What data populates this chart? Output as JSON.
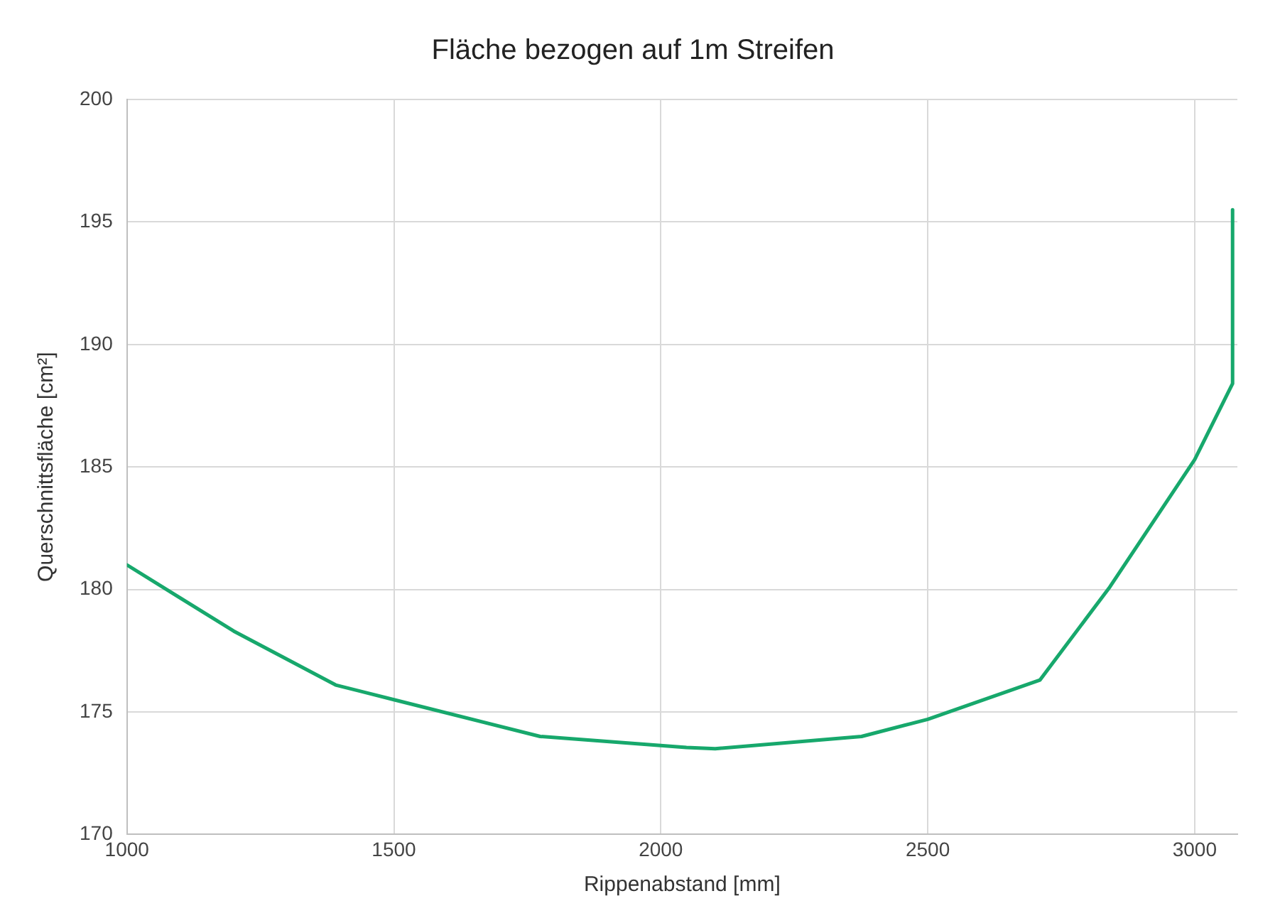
{
  "chart_data": {
    "type": "line",
    "title": "Fläche bezogen auf 1m Streifen",
    "xlabel": "Rippenabstand [mm]",
    "ylabel": "Querschnittsfläche [cm²]",
    "x": [
      1000,
      1200,
      1391,
      1500,
      1774,
      2048,
      2102,
      2376,
      2500,
      2710,
      2841,
      3000,
      3071,
      3071
    ],
    "series": [
      {
        "color": "#17a86c",
        "values": [
          181.0,
          178.3,
          176.1,
          175.5,
          174.0,
          173.55,
          173.5,
          174.0,
          174.7,
          176.3,
          180.1,
          185.3,
          188.4,
          195.5
        ]
      }
    ],
    "xlim": [
      1000,
      3080
    ],
    "xticks": [
      1000,
      1500,
      2000,
      2500,
      3000
    ],
    "ylim": [
      170,
      200
    ],
    "yticks": [
      170,
      175,
      180,
      185,
      190,
      195,
      200
    ],
    "grid": true,
    "legend": false,
    "marker": "none",
    "line_style": "solid"
  }
}
